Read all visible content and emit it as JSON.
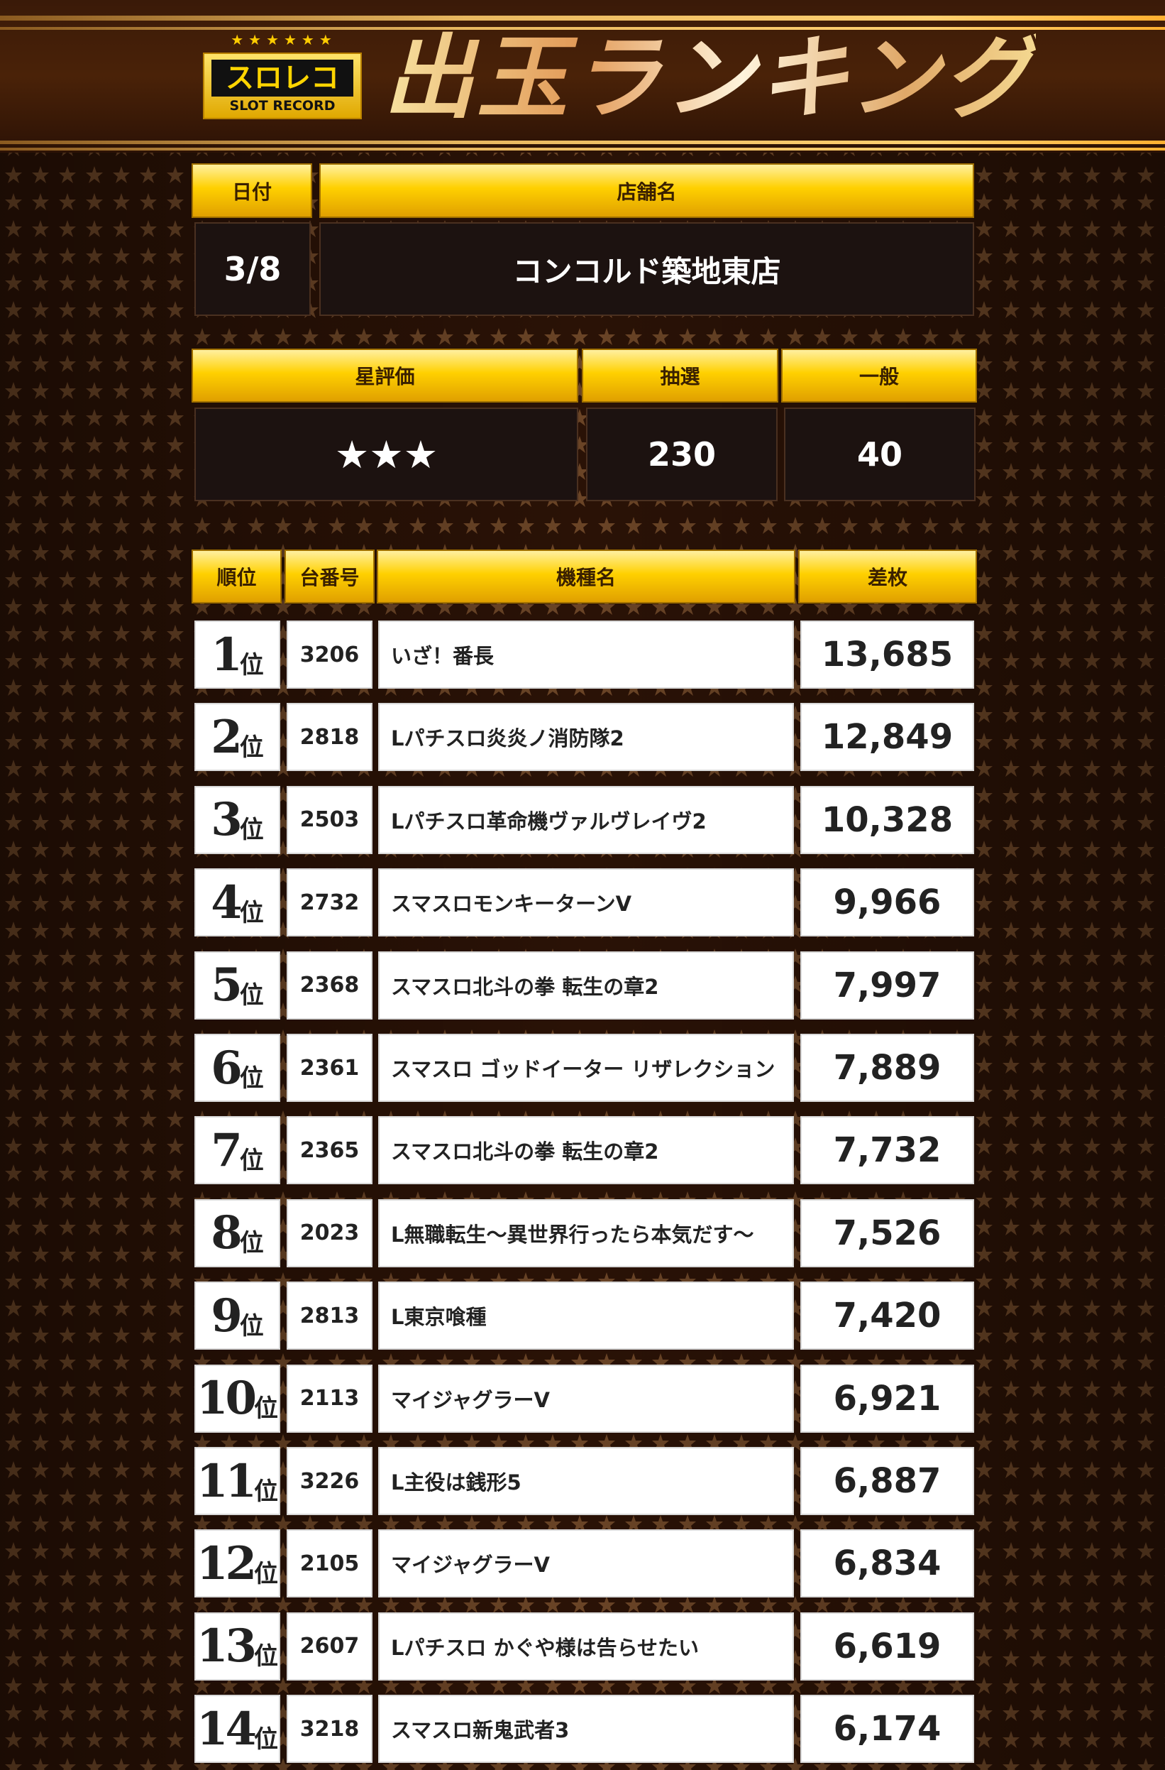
{
  "header": {
    "logo_text": "スロレコ",
    "logo_sub": "SLOT RECORD",
    "logo_stars": "★★★★★★",
    "title": "出玉ランキング"
  },
  "info": {
    "date_label": "日付",
    "date": "3/8",
    "store_label": "店舗名",
    "store": "コンコルド築地東店",
    "rating_label": "星評価",
    "rating": "★★★",
    "rating_value": 3,
    "lottery_label": "抽選",
    "lottery": "230",
    "general_label": "一般",
    "general": "40"
  },
  "table": {
    "headers": [
      "順位",
      "台番号",
      "機種名",
      "差枚"
    ],
    "rank_suffix": "位",
    "rows": [
      {
        "rank": "1",
        "no": "3206",
        "name": "いざ！番長",
        "diff": "13,685"
      },
      {
        "rank": "2",
        "no": "2818",
        "name": "Lパチスロ炎炎ノ消防隊2",
        "diff": "12,849"
      },
      {
        "rank": "3",
        "no": "2503",
        "name": "Lパチスロ革命機ヴァルヴレイヴ2",
        "diff": "10,328"
      },
      {
        "rank": "4",
        "no": "2732",
        "name": "スマスロモンキーターンV",
        "diff": "9,966"
      },
      {
        "rank": "5",
        "no": "2368",
        "name": "スマスロ北斗の拳 転生の章2",
        "diff": "7,997"
      },
      {
        "rank": "6",
        "no": "2361",
        "name": "スマスロ ゴッドイーター リザレクション",
        "diff": "7,889"
      },
      {
        "rank": "7",
        "no": "2365",
        "name": "スマスロ北斗の拳 転生の章2",
        "diff": "7,732"
      },
      {
        "rank": "8",
        "no": "2023",
        "name": "L無職転生～異世界行ったら本気だす～",
        "diff": "7,526"
      },
      {
        "rank": "9",
        "no": "2813",
        "name": "L東京喰種",
        "diff": "7,420"
      },
      {
        "rank": "10",
        "no": "2113",
        "name": "マイジャグラーV",
        "diff": "6,921"
      },
      {
        "rank": "11",
        "no": "3226",
        "name": "L主役は銭形5",
        "diff": "6,887"
      },
      {
        "rank": "12",
        "no": "2105",
        "name": "マイジャグラーV",
        "diff": "6,834"
      },
      {
        "rank": "13",
        "no": "2607",
        "name": "Lパチスロ かぐや様は告らせたい",
        "diff": "6,619"
      },
      {
        "rank": "14",
        "no": "3218",
        "name": "スマスロ新鬼武者3",
        "diff": "6,174"
      }
    ]
  },
  "colors": {
    "gold": "#ffd000",
    "background": "#2a1206",
    "cell_dark": "#1c1210"
  }
}
